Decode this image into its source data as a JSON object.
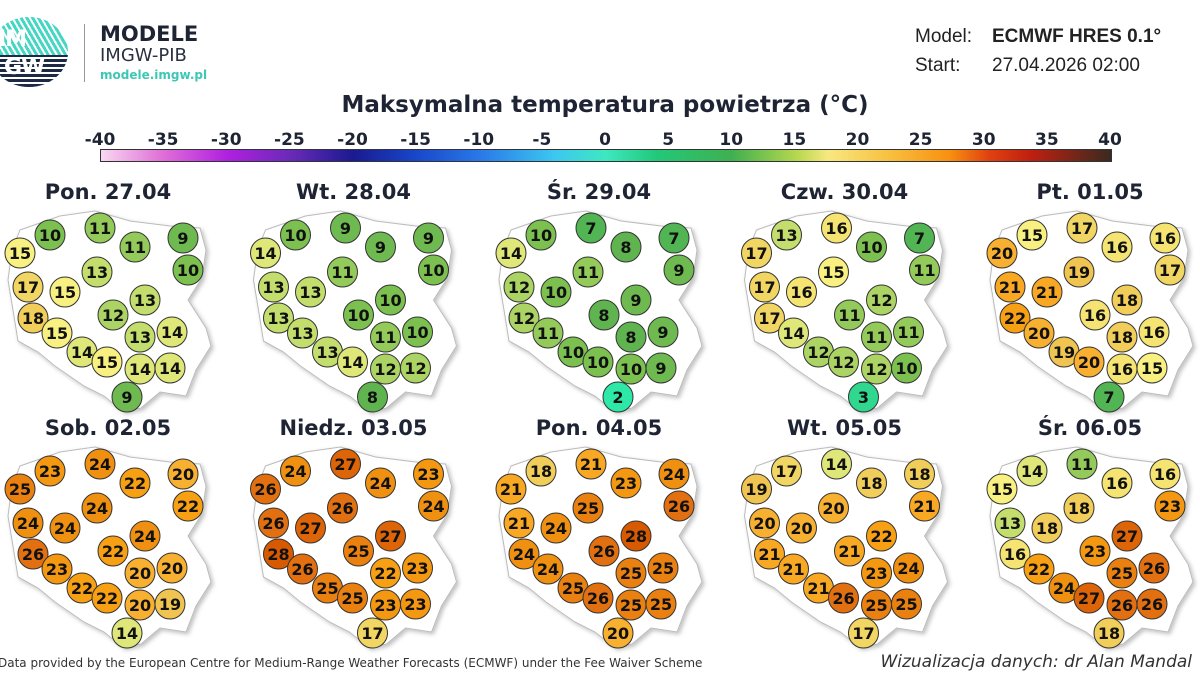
{
  "brand": {
    "logo_text_top": "IM",
    "logo_text_bottom": "GW",
    "name": "MODELE",
    "org": "IMGW-PIB",
    "url": "modele.imgw.pl"
  },
  "meta": {
    "model_label": "Model:",
    "model_value": "ECMWF HRES 0.1°",
    "start_label": "Start:",
    "start_value": "27.04.2026 02:00"
  },
  "title": "Maksymalna temperatura powietrza (°C)",
  "legend": {
    "ticks": [
      "-40",
      "-35",
      "-30",
      "-25",
      "-20",
      "-15",
      "-10",
      "-5",
      "0",
      "5",
      "10",
      "15",
      "20",
      "25",
      "30",
      "35",
      "40"
    ],
    "min": -40,
    "max": 40
  },
  "days": [
    {
      "label": "Pon. 27.04",
      "values": [
        10,
        11,
        9,
        15,
        11,
        10,
        13,
        17,
        15,
        13,
        12,
        18,
        15,
        13,
        14,
        14,
        15,
        14,
        14,
        9
      ]
    },
    {
      "label": "Wt. 28.04",
      "values": [
        10,
        9,
        9,
        14,
        9,
        10,
        11,
        13,
        13,
        10,
        10,
        13,
        13,
        11,
        10,
        13,
        14,
        12,
        12,
        8
      ]
    },
    {
      "label": "Śr. 29.04",
      "values": [
        10,
        7,
        7,
        14,
        8,
        9,
        11,
        12,
        10,
        9,
        8,
        12,
        11,
        8,
        9,
        10,
        10,
        10,
        9,
        2
      ]
    },
    {
      "label": "Czw. 30.04",
      "values": [
        13,
        16,
        7,
        17,
        10,
        11,
        15,
        17,
        16,
        12,
        11,
        17,
        14,
        11,
        11,
        12,
        12,
        12,
        10,
        3
      ]
    },
    {
      "label": "Pt. 01.05",
      "values": [
        15,
        17,
        16,
        20,
        16,
        17,
        19,
        21,
        21,
        18,
        16,
        22,
        20,
        18,
        16,
        19,
        20,
        16,
        15,
        7
      ]
    },
    {
      "label": "Sob. 02.05",
      "values": [
        23,
        24,
        20,
        25,
        22,
        22,
        24,
        24,
        24,
        24,
        22,
        26,
        23,
        20,
        20,
        22,
        22,
        20,
        19,
        14
      ]
    },
    {
      "label": "Niedz. 03.05",
      "values": [
        24,
        27,
        23,
        26,
        24,
        24,
        26,
        26,
        27,
        27,
        25,
        28,
        26,
        22,
        23,
        25,
        25,
        23,
        23,
        17
      ]
    },
    {
      "label": "Pon. 04.05",
      "values": [
        18,
        21,
        24,
        21,
        23,
        26,
        25,
        21,
        24,
        28,
        26,
        24,
        24,
        25,
        25,
        25,
        26,
        25,
        25,
        20
      ]
    },
    {
      "label": "Wt. 05.05",
      "values": [
        17,
        14,
        18,
        19,
        18,
        21,
        20,
        20,
        20,
        22,
        21,
        21,
        21,
        23,
        24,
        21,
        26,
        25,
        25,
        17
      ]
    },
    {
      "label": "Śr. 06.05",
      "values": [
        14,
        11,
        16,
        15,
        16,
        23,
        18,
        13,
        18,
        27,
        23,
        16,
        22,
        25,
        26,
        24,
        27,
        26,
        26,
        18
      ]
    }
  ],
  "footer": {
    "credit": "Data provided by the European Centre for Medium-Range Weather Forecasts (ECMWF) under the Fee Waiver Scheme",
    "author": "Wizualizacja danych: dr Alan Mandal"
  }
}
